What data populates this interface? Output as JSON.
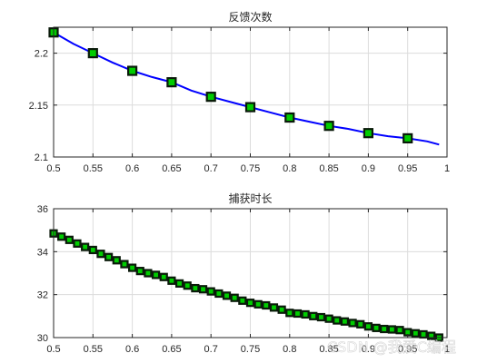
{
  "watermark": "CSDN @我爱C编程",
  "colors": {
    "line": "#0000ff",
    "marker_face": "#00cc00",
    "marker_edge": "#0a1a0a",
    "grid": "#dcdcdc",
    "axis": "#262626"
  },
  "chart_data": [
    {
      "type": "line",
      "title": "反馈次数",
      "xlabel": "",
      "ylabel": "",
      "xlim": [
        0.5,
        1.0
      ],
      "ylim": [
        2.1,
        2.225
      ],
      "xticks": [
        0.5,
        0.55,
        0.6,
        0.65,
        0.7,
        0.75,
        0.8,
        0.85,
        0.9,
        0.95,
        1
      ],
      "xtick_labels": [
        "0.5",
        "0.55",
        "0.6",
        "0.65",
        "0.7",
        "0.75",
        "0.8",
        "0.85",
        "0.9",
        "0.95",
        "1"
      ],
      "yticks": [
        2.1,
        2.15,
        2.2
      ],
      "ytick_labels": [
        "2.1",
        "2.15",
        "2.2"
      ],
      "grid": true,
      "curve": {
        "x": [
          0.5,
          0.525,
          0.55,
          0.575,
          0.6,
          0.625,
          0.65,
          0.675,
          0.7,
          0.725,
          0.75,
          0.775,
          0.8,
          0.825,
          0.85,
          0.875,
          0.9,
          0.925,
          0.95,
          0.975,
          0.99
        ],
        "y": [
          2.22,
          2.209,
          2.2,
          2.191,
          2.183,
          2.177,
          2.172,
          2.164,
          2.158,
          2.153,
          2.148,
          2.143,
          2.138,
          2.134,
          2.13,
          2.127,
          2.123,
          2.12,
          2.118,
          2.115,
          2.112
        ]
      },
      "markers": {
        "x": [
          0.5,
          0.55,
          0.6,
          0.65,
          0.7,
          0.75,
          0.8,
          0.85,
          0.9,
          0.95
        ],
        "y": [
          2.22,
          2.2,
          2.183,
          2.172,
          2.158,
          2.148,
          2.138,
          2.13,
          2.123,
          2.118
        ]
      }
    },
    {
      "type": "line",
      "title": "捕获时长",
      "xlabel": "",
      "ylabel": "",
      "xlim": [
        0.5,
        1.0
      ],
      "ylim": [
        30,
        36
      ],
      "xticks": [
        0.5,
        0.55,
        0.6,
        0.65,
        0.7,
        0.75,
        0.8,
        0.85,
        0.9,
        0.95,
        1
      ],
      "xtick_labels": [
        "0.5",
        "0.55",
        "0.6",
        "0.65",
        "0.7",
        "0.75",
        "0.8",
        "0.85",
        "0.9",
        "0.95",
        "1"
      ],
      "yticks": [
        30,
        32,
        34,
        36
      ],
      "ytick_labels": [
        "30",
        "32",
        "34",
        "36"
      ],
      "grid": true,
      "curve": {
        "x": [
          0.5,
          0.51,
          0.52,
          0.53,
          0.54,
          0.55,
          0.56,
          0.57,
          0.58,
          0.59,
          0.6,
          0.61,
          0.62,
          0.63,
          0.64,
          0.65,
          0.66,
          0.67,
          0.68,
          0.69,
          0.7,
          0.71,
          0.72,
          0.73,
          0.74,
          0.75,
          0.76,
          0.77,
          0.78,
          0.79,
          0.8,
          0.81,
          0.82,
          0.83,
          0.84,
          0.85,
          0.86,
          0.87,
          0.88,
          0.89,
          0.9,
          0.91,
          0.92,
          0.93,
          0.94,
          0.95,
          0.96,
          0.97,
          0.98,
          0.99
        ],
        "y": [
          34.85,
          34.7,
          34.55,
          34.38,
          34.22,
          34.08,
          33.9,
          33.75,
          33.6,
          33.42,
          33.25,
          33.1,
          33.0,
          32.92,
          32.82,
          32.65,
          32.52,
          32.42,
          32.3,
          32.25,
          32.15,
          32.05,
          31.95,
          31.85,
          31.72,
          31.62,
          31.55,
          31.5,
          31.4,
          31.3,
          31.15,
          31.12,
          31.08,
          31.0,
          30.95,
          30.88,
          30.8,
          30.75,
          30.68,
          30.62,
          30.52,
          30.45,
          30.4,
          30.38,
          30.35,
          30.25,
          30.2,
          30.15,
          30.08,
          30.0
        ]
      },
      "markers": {
        "x": [
          0.5,
          0.51,
          0.52,
          0.53,
          0.54,
          0.55,
          0.56,
          0.57,
          0.58,
          0.59,
          0.6,
          0.61,
          0.62,
          0.63,
          0.64,
          0.65,
          0.66,
          0.67,
          0.68,
          0.69,
          0.7,
          0.71,
          0.72,
          0.73,
          0.74,
          0.75,
          0.76,
          0.77,
          0.78,
          0.79,
          0.8,
          0.81,
          0.82,
          0.83,
          0.84,
          0.85,
          0.86,
          0.87,
          0.88,
          0.89,
          0.9,
          0.91,
          0.92,
          0.93,
          0.94,
          0.95,
          0.96,
          0.97,
          0.98,
          0.99
        ],
        "y": [
          34.85,
          34.7,
          34.55,
          34.38,
          34.22,
          34.08,
          33.9,
          33.75,
          33.6,
          33.42,
          33.25,
          33.1,
          33.0,
          32.92,
          32.82,
          32.65,
          32.52,
          32.42,
          32.3,
          32.25,
          32.15,
          32.05,
          31.95,
          31.85,
          31.72,
          31.62,
          31.55,
          31.5,
          31.4,
          31.3,
          31.15,
          31.12,
          31.08,
          31.0,
          30.95,
          30.88,
          30.8,
          30.75,
          30.68,
          30.62,
          30.52,
          30.45,
          30.4,
          30.38,
          30.35,
          30.25,
          30.2,
          30.15,
          30.08,
          30.0
        ]
      }
    }
  ]
}
